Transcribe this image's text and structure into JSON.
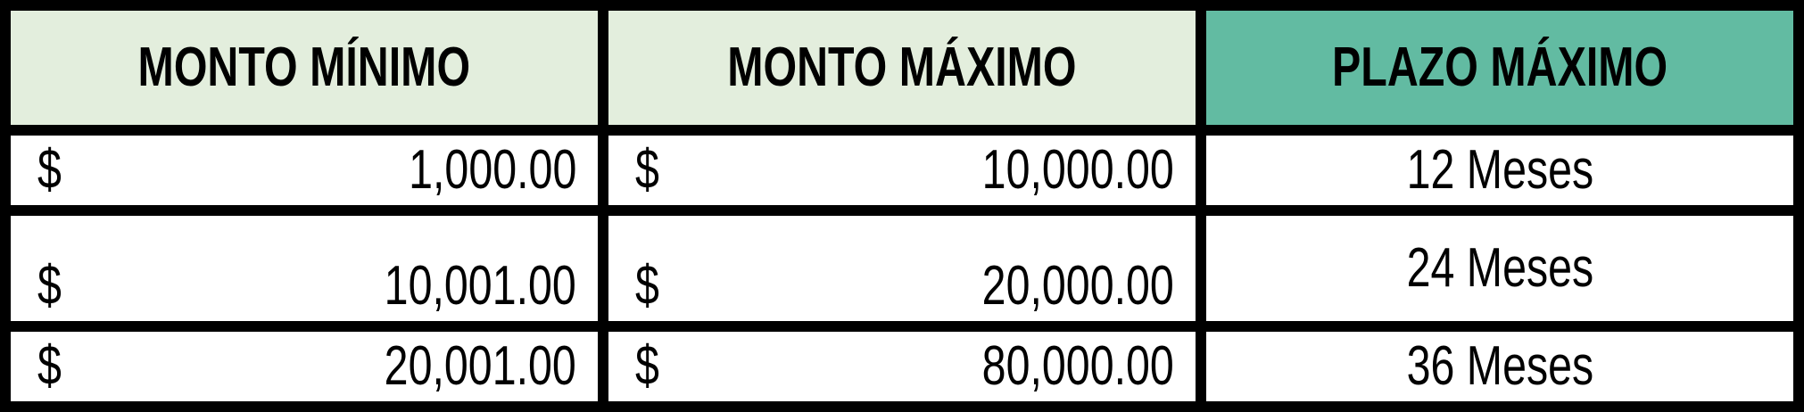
{
  "colors": {
    "header_light_green": "#e3eedd",
    "header_teal": "#62bba2",
    "grid_border": "#000000",
    "cell_background": "#ffffff",
    "text": "#000000"
  },
  "table": {
    "headers": [
      {
        "label": "MONTO MÍNIMO"
      },
      {
        "label": "MONTO MÁXIMO"
      },
      {
        "label": "PLAZO MÁXIMO"
      }
    ],
    "rows": [
      {
        "min_currency": "$",
        "min_amount": "1,000.00",
        "max_currency": "$",
        "max_amount": "10,000.00",
        "plazo": "12 Meses"
      },
      {
        "min_currency": "$",
        "min_amount": "10,001.00",
        "max_currency": "$",
        "max_amount": "20,000.00",
        "plazo": "24 Meses"
      },
      {
        "min_currency": "$",
        "min_amount": "20,001.00",
        "max_currency": "$",
        "max_amount": "80,000.00",
        "plazo": "36 Meses"
      }
    ]
  }
}
